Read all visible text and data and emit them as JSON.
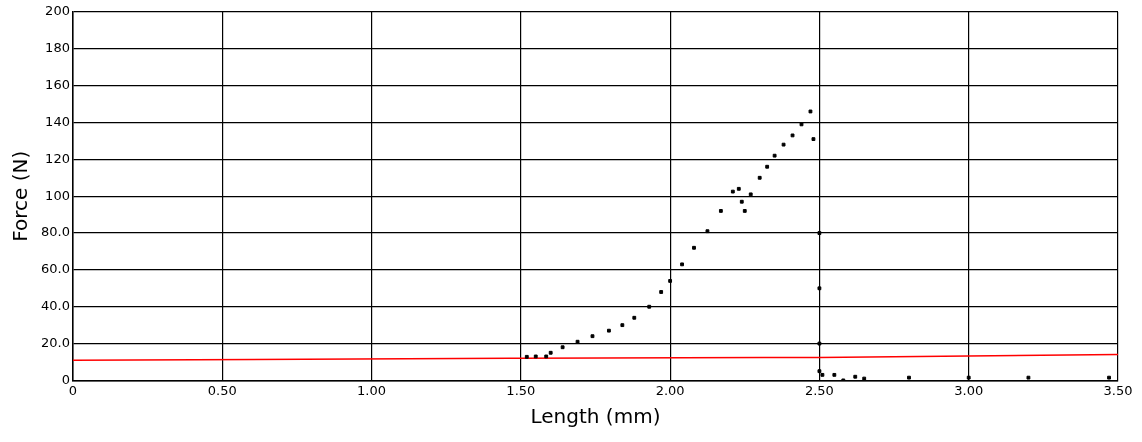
{
  "chart_data": {
    "type": "scatter",
    "xlabel": "Length (mm)",
    "ylabel": "Force (N)",
    "xlim": [
      0,
      3.5
    ],
    "xticks": [
      0,
      {
        "value": 0.5,
        "label": "0.50"
      },
      {
        "value": 1,
        "label": "1.00"
      },
      {
        "value": 1.5,
        "label": "1.50"
      },
      {
        "value": 2,
        "label": "2.00"
      },
      {
        "value": 2.5,
        "label": "2.50"
      },
      {
        "value": 3,
        "label": "3.00"
      },
      {
        "value": 3.5,
        "label": "3.50"
      }
    ],
    "ylim": [
      0,
      200
    ],
    "yticks": [
      0,
      {
        "value": 20,
        "label": "20.0"
      },
      {
        "value": 40,
        "label": "40.0"
      },
      {
        "value": 60,
        "label": "60.0"
      },
      {
        "value": 80,
        "label": "80.0"
      },
      100,
      120,
      140,
      160,
      180,
      200
    ],
    "grid": true,
    "legend": false,
    "marker": "square",
    "series": [
      {
        "color": "#000000",
        "x": [
          1.52,
          1.55,
          1.585,
          1.6,
          1.64,
          1.69,
          1.74,
          1.795,
          1.84,
          1.88,
          1.93,
          1.97,
          2.0,
          2.04,
          2.08,
          2.125,
          2.17,
          2.21,
          2.23,
          2.24,
          2.25,
          2.27,
          2.3,
          2.325,
          2.35,
          2.38,
          2.41,
          2.44,
          2.47,
          2.48,
          2.5,
          2.5,
          2.5,
          2.5,
          2.51,
          2.55,
          2.58,
          2.62,
          2.65,
          2.8,
          3.0,
          3.2,
          3.47
        ],
        "values": [
          12.8,
          13,
          13,
          15,
          18,
          21,
          24,
          27,
          30,
          34,
          40,
          48,
          54,
          63,
          72,
          81,
          92,
          102.5,
          104,
          97,
          92,
          101,
          110,
          116,
          122,
          128,
          133,
          139,
          146,
          131,
          80,
          50,
          20,
          5,
          3,
          3,
          0,
          2,
          1,
          1.5,
          1.5,
          1.5,
          1.5
        ]
      },
      {
        "type": "line",
        "marker": "none",
        "color": "#ff0000",
        "x": [
          0,
          1.5,
          2.5,
          3.5
        ],
        "values": [
          11,
          12,
          12.5,
          14
        ]
      }
    ]
  }
}
